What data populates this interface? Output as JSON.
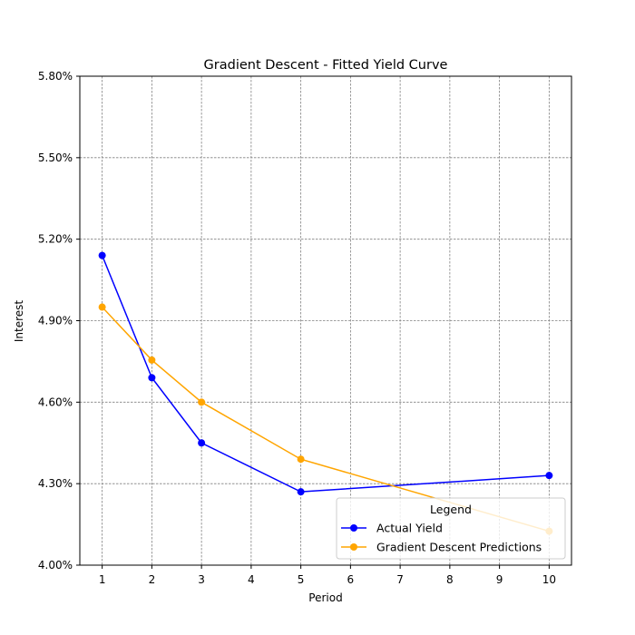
{
  "chart_data": {
    "type": "line",
    "title": "Gradient Descent - Fitted Yield Curve",
    "xlabel": "Period",
    "ylabel": "Interest",
    "xlim": [
      0.55,
      10.45
    ],
    "ylim": [
      4.0,
      5.8
    ],
    "x_ticks": [
      1,
      2,
      3,
      4,
      5,
      6,
      7,
      8,
      9,
      10
    ],
    "y_ticks": [
      4.0,
      4.3,
      4.6,
      4.9,
      5.2,
      5.5,
      5.8
    ],
    "y_tick_labels": [
      "4.00%",
      "4.30%",
      "4.60%",
      "4.90%",
      "5.20%",
      "5.50%",
      "5.80%"
    ],
    "grid": true,
    "legend": {
      "title": "Legend",
      "placement": "lower-right"
    },
    "series": [
      {
        "name": "Actual Yield",
        "color": "#0000ff",
        "x": [
          1,
          2,
          3,
          5,
          10
        ],
        "values": [
          5.14,
          4.69,
          4.45,
          4.27,
          4.33
        ]
      },
      {
        "name": "Gradient Descent Predictions",
        "color": "#ffa500",
        "x": [
          1,
          2,
          3,
          5,
          10
        ],
        "values": [
          4.95,
          4.755,
          4.6,
          4.39,
          4.125
        ]
      }
    ]
  }
}
